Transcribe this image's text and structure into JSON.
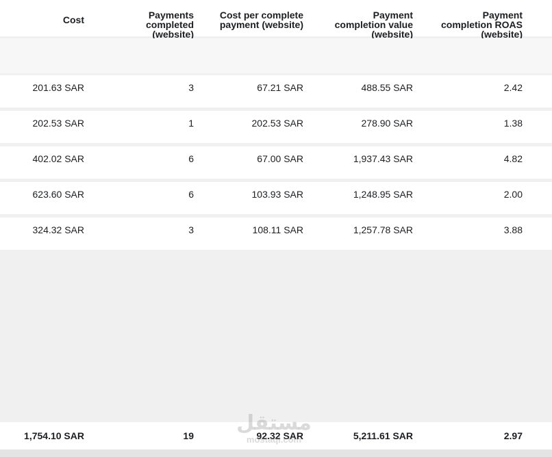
{
  "columns": [
    {
      "label": "Cost"
    },
    {
      "label_lines": [
        "Payments",
        "completed",
        "(website)"
      ]
    },
    {
      "label_lines": [
        "Cost per complete",
        "payment (website)"
      ]
    },
    {
      "label_lines": [
        "Payment",
        "completion value",
        "(website)"
      ]
    },
    {
      "label_lines": [
        "Payment",
        "completion ROAS",
        "(website)"
      ]
    }
  ],
  "rows": [
    {
      "cost": "201.63 SAR",
      "payments": "3",
      "cost_per": "67.21 SAR",
      "value": "488.55 SAR",
      "roas": "2.42"
    },
    {
      "cost": "202.53 SAR",
      "payments": "1",
      "cost_per": "202.53 SAR",
      "value": "278.90 SAR",
      "roas": "1.38"
    },
    {
      "cost": "402.02 SAR",
      "payments": "6",
      "cost_per": "67.00 SAR",
      "value": "1,937.43 SAR",
      "roas": "4.82"
    },
    {
      "cost": "623.60 SAR",
      "payments": "6",
      "cost_per": "103.93 SAR",
      "value": "1,248.95 SAR",
      "roas": "2.00"
    },
    {
      "cost": "324.32 SAR",
      "payments": "3",
      "cost_per": "108.11 SAR",
      "value": "1,257.78 SAR",
      "roas": "3.88"
    }
  ],
  "totals": {
    "cost": "1,754.10 SAR",
    "payments": "19",
    "cost_per": "92.32 SAR",
    "value": "5,211.61 SAR",
    "roas": "2.97"
  },
  "watermark": {
    "arabic": "مستقل",
    "latin": "mostaql.com"
  }
}
